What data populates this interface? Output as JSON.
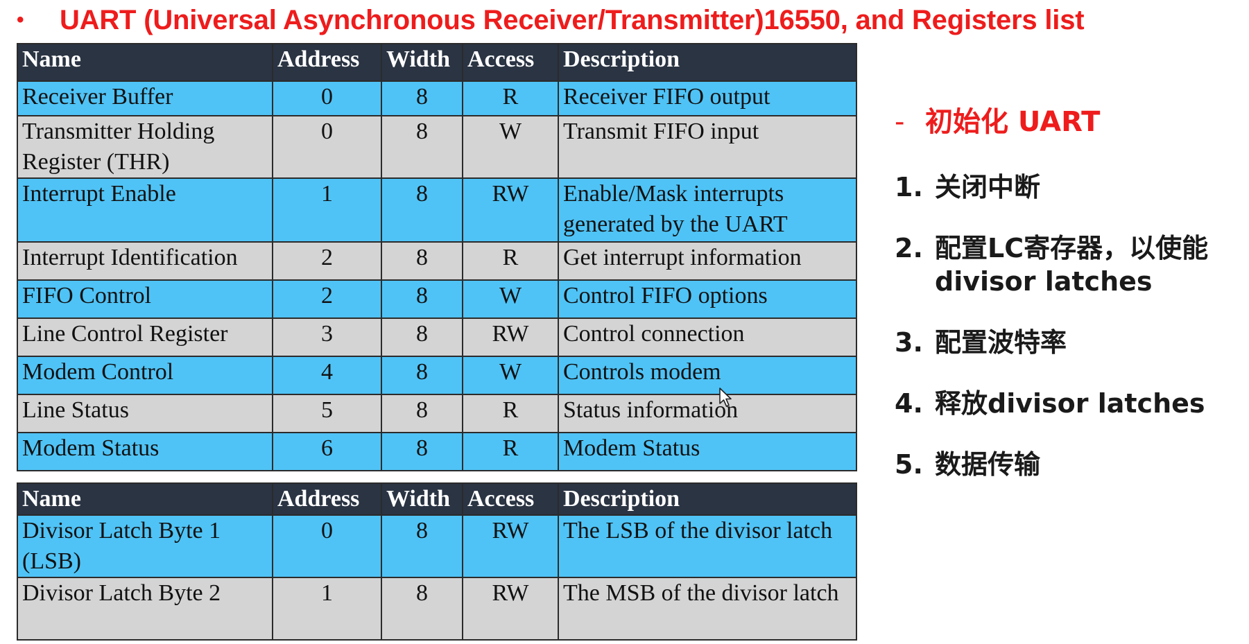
{
  "slide": {
    "title": "UART (Universal Asynchronous Receiver/Transmitter)16550, and Registers list",
    "bullet": "•"
  },
  "table1": {
    "headers": [
      "Name",
      "Address",
      "Width",
      "Access",
      "Description"
    ],
    "rows": [
      {
        "name": "Receiver Buffer",
        "address": "0",
        "width": "8",
        "access": "R",
        "description": "Receiver FIFO output"
      },
      {
        "name": "Transmitter Holding Register (THR)",
        "address": "0",
        "width": "8",
        "access": "W",
        "description": "Transmit FIFO input"
      },
      {
        "name": "Interrupt Enable",
        "address": "1",
        "width": "8",
        "access": "RW",
        "description": "Enable/Mask interrupts generated by the UART"
      },
      {
        "name": "Interrupt Identification",
        "address": "2",
        "width": "8",
        "access": "R",
        "description": "Get interrupt information"
      },
      {
        "name": "FIFO Control",
        "address": "2",
        "width": "8",
        "access": "W",
        "description": "Control FIFO options"
      },
      {
        "name": "Line Control Register",
        "address": "3",
        "width": "8",
        "access": "RW",
        "description": "Control connection"
      },
      {
        "name": "Modem Control",
        "address": "4",
        "width": "8",
        "access": "W",
        "description": "Controls modem"
      },
      {
        "name": "Line Status",
        "address": "5",
        "width": "8",
        "access": "R",
        "description": "Status information"
      },
      {
        "name": "Modem Status",
        "address": "6",
        "width": "8",
        "access": "R",
        "description": "Modem Status"
      }
    ]
  },
  "table2": {
    "headers": [
      "Name",
      "Address",
      "Width",
      "Access",
      "Description"
    ],
    "rows": [
      {
        "name": "Divisor Latch Byte 1 (LSB)",
        "address": "0",
        "width": "8",
        "access": "RW",
        "description": "The LSB of the divisor latch"
      },
      {
        "name": "Divisor Latch Byte 2",
        "address": "1",
        "width": "8",
        "access": "RW",
        "description": "The MSB of the divisor latch"
      }
    ]
  },
  "steps": {
    "dash": "-",
    "heading": "初始化 UART",
    "items": [
      {
        "num": "1.",
        "text": "关闭中断"
      },
      {
        "num": "2.",
        "text": "配置LC寄存器，以使能divisor latches"
      },
      {
        "num": "3.",
        "text": "配置波特率"
      },
      {
        "num": "4.",
        "text": "释放divisor latches"
      },
      {
        "num": "5.",
        "text": "数据传输"
      }
    ]
  },
  "colors": {
    "title_red": "#ee1c1c",
    "header_dark": "#2a3443",
    "row_blue": "#4fc3f6",
    "row_gray": "#d4d4d4"
  },
  "icons": {
    "cursor": "mouse-pointer-icon"
  }
}
